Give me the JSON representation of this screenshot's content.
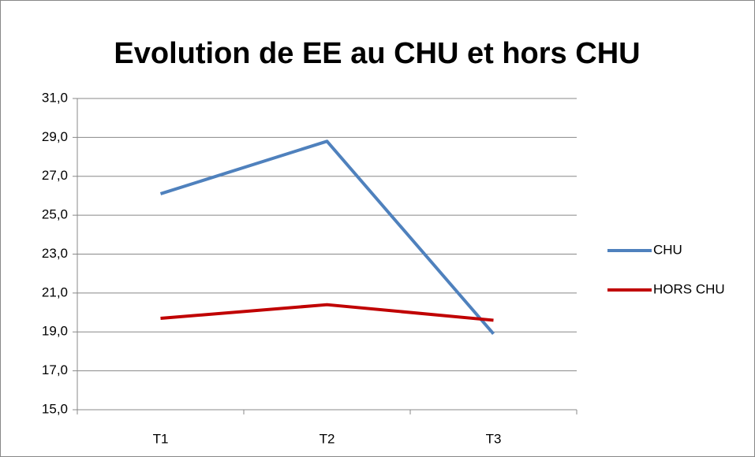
{
  "chart_data": {
    "type": "line",
    "title": "Evolution de EE au CHU et hors CHU",
    "categories": [
      "T1",
      "T2",
      "T3"
    ],
    "series": [
      {
        "name": "CHU",
        "color": "#4f81bd",
        "values": [
          26.1,
          28.8,
          18.9
        ]
      },
      {
        "name": "HORS CHU",
        "color": "#c00000",
        "values": [
          19.7,
          20.4,
          19.6
        ]
      }
    ],
    "ylim": [
      15,
      31
    ],
    "yticks": [
      {
        "value": 15,
        "label": "15,0"
      },
      {
        "value": 17,
        "label": "17,0"
      },
      {
        "value": 19,
        "label": "19,0"
      },
      {
        "value": 21,
        "label": "21,0"
      },
      {
        "value": 23,
        "label": "23,0"
      },
      {
        "value": 25,
        "label": "25,0"
      },
      {
        "value": 27,
        "label": "27,0"
      },
      {
        "value": 29,
        "label": "29,0"
      },
      {
        "value": 31,
        "label": "31,0"
      }
    ],
    "grid": true,
    "legend": "right"
  }
}
